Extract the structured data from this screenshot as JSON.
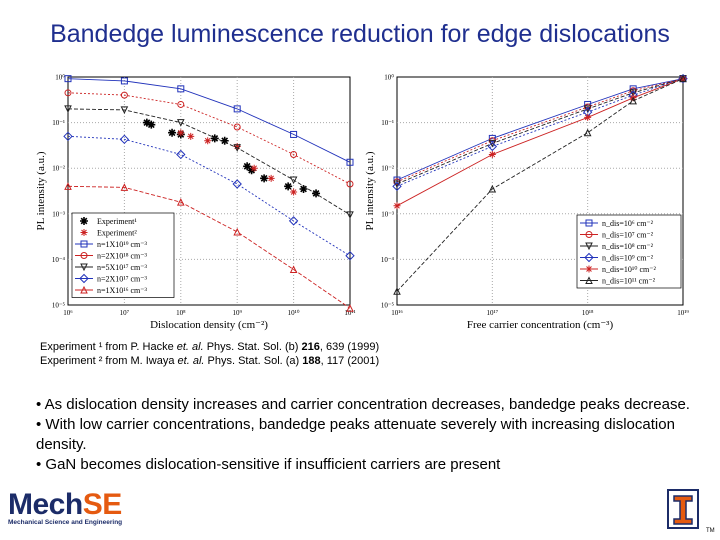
{
  "slide": {
    "title": "Bandedge luminescence reduction for edge dislocations",
    "references": [
      {
        "mark": "Experiment ¹",
        "text": " from P. Hacke ",
        "italic": "et. al.",
        "text2": " Phys. Stat. Sol. (b) ",
        "bold": "216",
        "text3": ", 639 (1999)"
      },
      {
        "mark": "Experiment ²",
        "text": " from M. Iwaya ",
        "italic": "et. al.",
        "text2": " Phys. Stat. Sol. (a) ",
        "bold": "188",
        "text3": ", 117 (2001)"
      }
    ],
    "bullets": [
      "• As dislocation density increases and carrier concentration decreases, bandedge peaks decrease.",
      "• With low carrier concentrations, bandedge peaks attenuate severely with increasing dislocation density.",
      "• GaN becomes dislocation-sensitive if insufficient carriers are present"
    ],
    "logo": {
      "text_a": "Mech",
      "text_b": "SE",
      "sub": "Mechanical Science and Engineering",
      "brand_color": "#1c2c68",
      "accent": "#e55a10"
    },
    "university_mark": {
      "letter": "I",
      "tm": "TM",
      "color": "#e55a10"
    }
  },
  "chart_data": [
    {
      "type": "line",
      "xscale": "log",
      "yscale": "log",
      "xlabel": "Dislocation density (cm⁻²)",
      "ylabel": "PL intensity (a.u.)",
      "xlim": [
        1000000.0,
        100000000000.0
      ],
      "ylim": [
        1e-05,
        1
      ],
      "xticks": [
        "10⁶",
        "10⁷",
        "10⁸",
        "10⁹",
        "10¹⁰",
        "10¹¹"
      ],
      "yticks": [
        "10⁻⁵",
        "10⁻⁴",
        "10⁻³",
        "10⁻²",
        "10⁻¹",
        "10⁰"
      ],
      "legend_position": "bottom-left",
      "series": [
        {
          "name": "Experiment¹",
          "style": "marker",
          "marker": "asterisk",
          "color": "#000000",
          "points": [
            [
              25000000.0,
              0.1
            ],
            [
              30000000.0,
              0.09
            ],
            [
              70000000.0,
              0.06
            ],
            [
              100000000.0,
              0.055
            ],
            [
              400000000.0,
              0.045
            ],
            [
              600000000.0,
              0.04
            ],
            [
              1500000000.0,
              0.011
            ],
            [
              1800000000.0,
              0.009
            ],
            [
              3000000000.0,
              0.006
            ],
            [
              8000000000.0,
              0.004
            ],
            [
              15000000000.0,
              0.0035
            ],
            [
              25000000000.0,
              0.0028
            ]
          ]
        },
        {
          "name": "Experiment²",
          "style": "marker",
          "marker": "star",
          "color": "#cc2222",
          "points": [
            [
              100000000.0,
              0.06
            ],
            [
              150000000.0,
              0.05
            ],
            [
              300000000.0,
              0.04
            ],
            [
              1000000000.0,
              0.03
            ],
            [
              2000000000.0,
              0.01
            ],
            [
              4000000000.0,
              0.006
            ],
            [
              10000000000.0,
              0.003
            ]
          ]
        },
        {
          "name": "n=1X10¹⁹ cm⁻³",
          "style": "line",
          "marker": "square",
          "color": "#2233bb",
          "points": [
            [
              1000000.0,
              0.92
            ],
            [
              10000000.0,
              0.82
            ],
            [
              100000000.0,
              0.55
            ],
            [
              1000000000.0,
              0.2
            ],
            [
              10000000000.0,
              0.055
            ],
            [
              100000000000.0,
              0.0135
            ]
          ]
        },
        {
          "name": "n=2X10¹⁸ cm⁻³",
          "style": "line",
          "marker": "circle",
          "color": "#cc2222",
          "points": [
            [
              1000000.0,
              0.45
            ],
            [
              10000000.0,
              0.4
            ],
            [
              100000000.0,
              0.25
            ],
            [
              1000000000.0,
              0.08
            ],
            [
              10000000000.0,
              0.02
            ],
            [
              100000000000.0,
              0.0045
            ]
          ]
        },
        {
          "name": "n=5X10¹⁷ cm⁻³",
          "style": "line",
          "marker": "triangle-down",
          "color": "#222222",
          "points": [
            [
              1000000.0,
              0.2
            ],
            [
              10000000.0,
              0.19
            ],
            [
              100000000.0,
              0.1
            ],
            [
              1000000000.0,
              0.028
            ],
            [
              10000000000.0,
              0.0055
            ],
            [
              100000000000.0,
              0.00095
            ]
          ]
        },
        {
          "name": "n=2X10¹⁷ cm⁻³",
          "style": "line",
          "marker": "diamond",
          "color": "#2233bb",
          "points": [
            [
              1000000.0,
              0.05
            ],
            [
              10000000.0,
              0.043
            ],
            [
              100000000.0,
              0.02
            ],
            [
              1000000000.0,
              0.0045
            ],
            [
              10000000000.0,
              0.0007
            ],
            [
              100000000000.0,
              0.00012
            ]
          ]
        },
        {
          "name": "n=1X10¹⁶ cm⁻³",
          "style": "line",
          "marker": "triangle-up",
          "color": "#cc2222",
          "points": [
            [
              1000000.0,
              0.004
            ],
            [
              10000000.0,
              0.0038
            ],
            [
              100000000.0,
              0.0018
            ],
            [
              1000000000.0,
              0.0004
            ],
            [
              10000000000.0,
              6e-05
            ],
            [
              100000000000.0,
              8.5e-06
            ]
          ]
        }
      ]
    },
    {
      "type": "line",
      "xscale": "log",
      "yscale": "log",
      "xlabel": "Free carrier concentration (cm⁻³)",
      "ylabel": "PL intensity (a.u.)",
      "xlim": [
        1e+16,
        1e+19
      ],
      "ylim": [
        1e-05,
        1
      ],
      "xticks": [
        "10¹⁶",
        "10¹⁷",
        "10¹⁸",
        "10¹⁹"
      ],
      "yticks": [
        "10⁻⁵",
        "10⁻⁴",
        "10⁻³",
        "10⁻²",
        "10⁻¹",
        "10⁰"
      ],
      "legend_position": "bottom-right",
      "series": [
        {
          "name": "n_dis=10⁶ cm⁻²",
          "style": "line",
          "marker": "square",
          "color": "#2233bb",
          "points": [
            [
              1e+16,
              0.0055
            ],
            [
              1e+17,
              0.045
            ],
            [
              1e+18,
              0.25
            ],
            [
              3e+18,
              0.55
            ],
            [
              1e+19,
              0.92
            ]
          ]
        },
        {
          "name": "n_dis=10⁷ cm⁻²",
          "style": "line",
          "marker": "circle",
          "color": "#cc2222",
          "points": [
            [
              1e+16,
              0.005
            ],
            [
              1e+17,
              0.04
            ],
            [
              1e+18,
              0.22
            ],
            [
              3e+18,
              0.5
            ],
            [
              1e+19,
              0.92
            ]
          ]
        },
        {
          "name": "n_dis=10⁸ cm⁻²",
          "style": "line",
          "marker": "triangle-down",
          "color": "#222222",
          "points": [
            [
              1e+16,
              0.0045
            ],
            [
              1e+17,
              0.035
            ],
            [
              1e+18,
              0.2
            ],
            [
              3e+18,
              0.45
            ],
            [
              1e+19,
              0.92
            ]
          ]
        },
        {
          "name": "n_dis=10⁹ cm⁻²",
          "style": "line",
          "marker": "diamond",
          "color": "#2233bb",
          "points": [
            [
              1e+16,
              0.004
            ],
            [
              1e+17,
              0.03
            ],
            [
              1e+18,
              0.17
            ],
            [
              3e+18,
              0.4
            ],
            [
              1e+19,
              0.92
            ]
          ]
        },
        {
          "name": "n_dis=10¹⁰ cm⁻²",
          "style": "line",
          "marker": "star",
          "color": "#cc2222",
          "points": [
            [
              1e+16,
              0.0015
            ],
            [
              1e+17,
              0.02
            ],
            [
              1e+18,
              0.13
            ],
            [
              3e+18,
              0.35
            ],
            [
              1e+19,
              0.92
            ]
          ]
        },
        {
          "name": "n_dis=10¹¹ cm⁻²",
          "style": "line",
          "marker": "triangle-up",
          "color": "#222222",
          "points": [
            [
              1e+16,
              2e-05
            ],
            [
              1e+17,
              0.0035
            ],
            [
              1e+18,
              0.06
            ],
            [
              3e+18,
              0.3
            ],
            [
              1e+19,
              0.92
            ]
          ]
        }
      ]
    }
  ]
}
